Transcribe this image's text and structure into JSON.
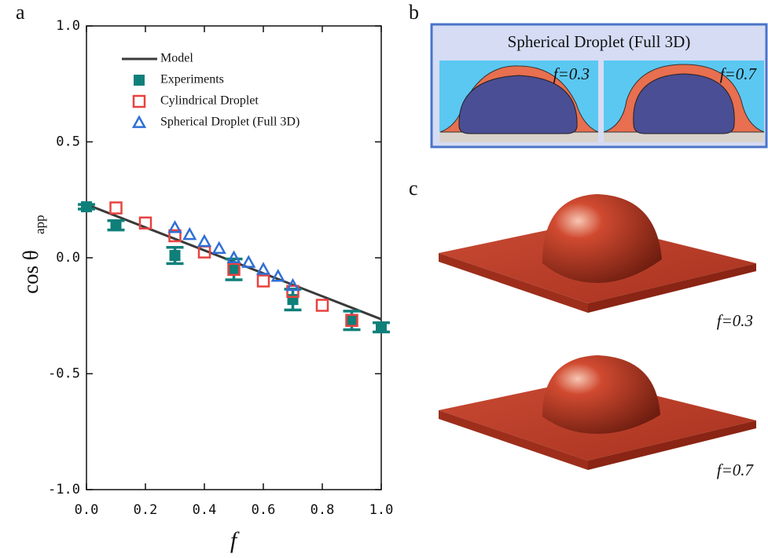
{
  "chart_data": {
    "type": "scatter",
    "xlabel": "f",
    "ylabel": "cos θ",
    "ylabel_subscript": "app",
    "xlim": [
      0,
      1
    ],
    "ylim": [
      -1,
      1
    ],
    "xticks": [
      {
        "value": 0,
        "label": "0.0"
      },
      0.2,
      0.4,
      0.6,
      0.8,
      {
        "value": 1,
        "label": "1.0"
      }
    ],
    "yticks": [
      {
        "value": -1,
        "label": "-1.0"
      },
      -0.5,
      {
        "value": 0,
        "label": "0.0"
      },
      0.5,
      {
        "value": 1,
        "label": "1.0"
      }
    ],
    "series": [
      {
        "name": "Model",
        "style": "line",
        "color": "#3a3a3a",
        "x": [
          0,
          1
        ],
        "values": [
          0.23,
          -0.265
        ]
      },
      {
        "name": "Experiments",
        "style": "filled-square",
        "color": "#0f7f7a",
        "x": [
          0,
          0.1,
          0.3,
          0.5,
          0.7,
          0.9,
          1
        ],
        "values": [
          0.22,
          0.14,
          0.01,
          -0.05,
          -0.18,
          -0.27,
          -0.3
        ],
        "errors": [
          0.01,
          0.02,
          0.035,
          0.045,
          0.045,
          0.04,
          0.02
        ]
      },
      {
        "name": "Cylindrical Droplet",
        "style": "open-square",
        "color": "#e8423f",
        "x": [
          0.1,
          0.2,
          0.3,
          0.4,
          0.5,
          0.6,
          0.7,
          0.8,
          0.9
        ],
        "values": [
          0.215,
          0.15,
          0.095,
          0.025,
          -0.05,
          -0.1,
          -0.145,
          -0.205,
          -0.27
        ]
      },
      {
        "name": "Spherical Droplet (Full 3D)",
        "style": "open-triangle",
        "color": "#2f6fd6",
        "x": [
          0.3,
          0.35,
          0.4,
          0.45,
          0.5,
          0.55,
          0.6,
          0.65,
          0.7
        ],
        "values": [
          0.13,
          0.1,
          0.07,
          0.04,
          0.0,
          -0.02,
          -0.05,
          -0.08,
          -0.12
        ]
      }
    ]
  },
  "panel_labels": [
    "a",
    "b",
    "c"
  ],
  "panel_b": {
    "title": "Spherical Droplet (Full 3D)",
    "labels": [
      "f=0.3",
      "f=0.7"
    ]
  },
  "panel_c": {
    "labels": [
      "f=0.3",
      "f=0.7"
    ]
  }
}
